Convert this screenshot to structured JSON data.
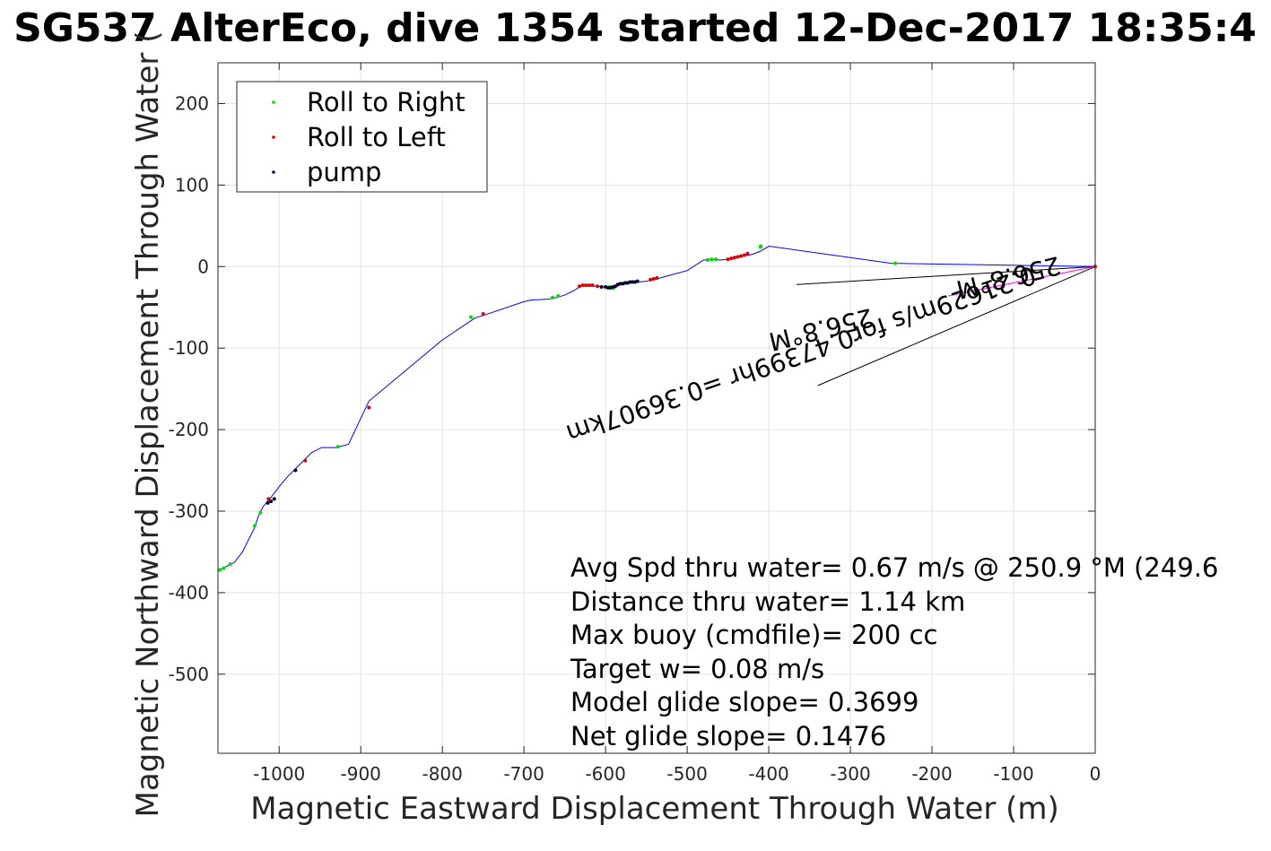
{
  "chart_data": {
    "type": "line",
    "title": "SG537 AlterEco, dive 1354 started 12-Dec-2017 18:35:4",
    "xlabel": "Magnetic Eastward Displacement Through Water (m)",
    "ylabel": "Magnetic Northward Displacement Through Water (",
    "xlim": [
      -1075,
      0
    ],
    "ylim": [
      -597,
      250
    ],
    "xticks": [
      -1000,
      -900,
      -800,
      -700,
      -600,
      -500,
      -400,
      -300,
      -200,
      -100,
      0
    ],
    "xtick_labels": [
      "-1000",
      "-900",
      "-800",
      "-700",
      "-600",
      "-500",
      "-400",
      "-300",
      "-200",
      "-100",
      "0"
    ],
    "yticks": [
      200,
      100,
      0,
      -100,
      -200,
      -300,
      -400,
      -500
    ],
    "ytick_labels": [
      "200",
      "100",
      "0",
      "-100",
      "-200",
      "-300",
      "-400",
      "-500"
    ],
    "grid": true,
    "legend_position": "top-left",
    "colors": {
      "track": "#0000ff",
      "roll_right": "#00dd00",
      "roll_left": "#dd0000",
      "pump": "#000033",
      "current": "#000000",
      "overlay": "#ff00ff"
    },
    "track": {
      "x": [
        -1075,
        -1065,
        -1055,
        -1045,
        -1030,
        -1025,
        -1020,
        -1010,
        -1000,
        -990,
        -980,
        -970,
        -960,
        -948,
        -930,
        -915,
        -890,
        -800,
        -760,
        -750,
        -700,
        -690,
        -670,
        -660,
        -650,
        -640,
        -630,
        -620,
        -610,
        -600,
        -595,
        -590,
        -585,
        -580,
        -570,
        -560,
        -550,
        -540,
        -530,
        -500,
        -480,
        -470,
        -460,
        -450,
        -440,
        -430,
        -420,
        -410,
        -400,
        -250,
        0
      ],
      "y": [
        -373,
        -368,
        -363,
        -350,
        -320,
        -305,
        -295,
        -283,
        -270,
        -258,
        -248,
        -238,
        -228,
        -222,
        -222,
        -218,
        -165,
        -90,
        -63,
        -60,
        -43,
        -41,
        -40,
        -38,
        -35,
        -30,
        -24,
        -24,
        -24,
        -25,
        -26,
        -26,
        -24,
        -21,
        -20,
        -19,
        -18,
        -16,
        -13,
        -5,
        8,
        9,
        8,
        9,
        11,
        13,
        15,
        19,
        25,
        4,
        0
      ]
    },
    "series": [
      {
        "name": "Roll to Right",
        "x": [
          -1073,
          -1068,
          -1060,
          -1030,
          -1023,
          -928,
          -765,
          -665,
          -658,
          -595,
          -592,
          -590,
          -475,
          -470,
          -465,
          -410,
          -410,
          -245
        ],
        "y": [
          -372,
          -370,
          -365,
          -318,
          -302,
          -221,
          -62,
          -38,
          -36,
          -25,
          -26,
          -26,
          8,
          9,
          9,
          24,
          25,
          4
        ]
      },
      {
        "name": "Roll to Left",
        "x": [
          -1013,
          -968,
          -890,
          -750,
          -632,
          -628,
          -624,
          -620,
          -616,
          -610,
          -545,
          -541,
          -537,
          -450,
          -446,
          -442,
          -438,
          -434,
          -430,
          -426,
          0
        ],
        "y": [
          -285,
          -238,
          -173,
          -58,
          -24,
          -23,
          -23,
          -23,
          -23,
          -24,
          -16,
          -15,
          -14,
          9,
          10,
          11,
          12,
          13,
          14,
          16,
          0
        ]
      },
      {
        "name": "pump",
        "x": [
          -1014,
          -1010,
          -1006,
          -980,
          -605,
          -600,
          -597,
          -594,
          -591,
          -588,
          -585,
          -582,
          -579,
          -576,
          -573,
          -570,
          -567,
          -564,
          -561
        ],
        "y": [
          -290,
          -288,
          -285,
          -250,
          -25,
          -25,
          -26,
          -26,
          -25,
          -24,
          -22,
          -21,
          -21,
          -20,
          -20,
          -19,
          -19,
          -19,
          -18
        ]
      }
    ],
    "current_lines": [
      {
        "x": [
          0,
          -366
        ],
        "y": [
          0,
          -22
        ]
      },
      {
        "x": [
          0,
          -340
        ],
        "y": [
          0,
          -146
        ]
      }
    ],
    "overlay_line": {
      "x": [
        0,
        -180
      ],
      "y": [
        0,
        -36
      ]
    },
    "annotations": {
      "current_text_1": "0.21629m/s for0.47399hr =0.36907km",
      "current_text_2": "256.8°M",
      "current_text_3": "256.8°M",
      "summary": [
        "Avg Spd thru water=  0.67 m/s @ 250.9 °M (249.6",
        "Distance thru water=  1.14 km",
        "Max buoy (cmdfile)= 200 cc",
        "Target w= 0.08 m/s",
        "Model glide slope= 0.3699",
        "Net glide slope= 0.1476"
      ]
    }
  }
}
